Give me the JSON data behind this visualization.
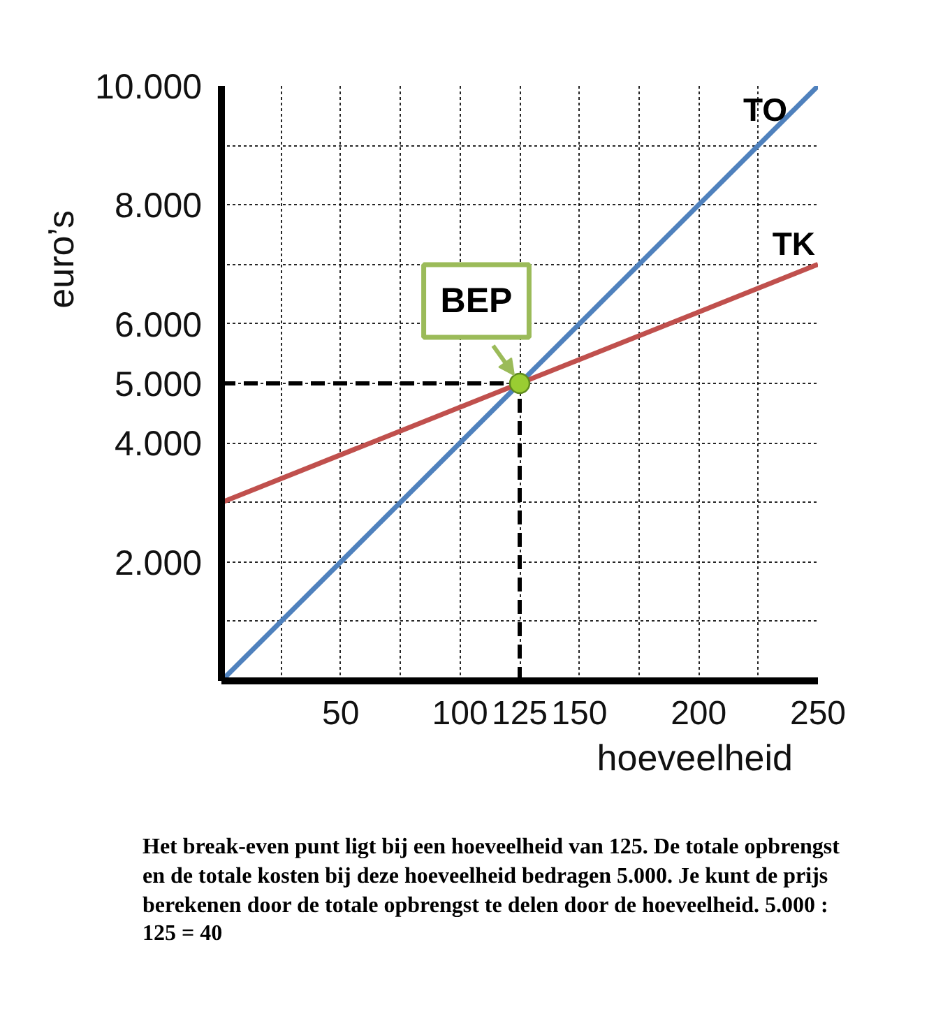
{
  "chart_data": {
    "type": "line",
    "xlabel": "hoeveelheid",
    "ylabel": "euro’s",
    "xlim": [
      0,
      250
    ],
    "ylim": [
      0,
      10000
    ],
    "xticks": [
      {
        "value": 25,
        "label": null
      },
      50,
      {
        "value": 75,
        "label": null
      },
      100,
      125,
      150,
      {
        "value": 175,
        "label": null
      },
      200,
      {
        "value": 225,
        "label": null
      },
      250
    ],
    "yticks": [
      {
        "value": 1000,
        "label": null
      },
      {
        "value": 2000,
        "label": "2.000"
      },
      {
        "value": 3000,
        "label": null
      },
      {
        "value": 4000,
        "label": "4.000"
      },
      {
        "value": 5000,
        "label": "5.000"
      },
      {
        "value": 6000,
        "label": "6.000"
      },
      {
        "value": 7000,
        "label": null
      },
      {
        "value": 8000,
        "label": "8.000"
      },
      {
        "value": 9000,
        "label": null
      },
      {
        "value": 10000,
        "label": "10.000"
      }
    ],
    "grid": true,
    "series": [
      {
        "color": "#000000",
        "line_style": "dashed",
        "x": [
          0,
          125
        ],
        "values": [
          5000,
          5000
        ]
      },
      {
        "color": "#000000",
        "line_style": "dashed",
        "x": [
          125,
          125
        ],
        "values": [
          0,
          5000
        ]
      },
      {
        "name": "TO",
        "color": "#4f81bd",
        "x": [
          0,
          250
        ],
        "values": [
          0,
          10000
        ]
      },
      {
        "name": "TK",
        "color": "#c0504d",
        "x": [
          0,
          250
        ],
        "values": [
          3000,
          7000
        ]
      },
      {
        "type": "scatter",
        "marker": "circle",
        "color": "#9acd32",
        "x": [
          125
        ],
        "values": [
          5000
        ]
      }
    ],
    "annotations": [
      {
        "text": "BEP",
        "x": 125,
        "y": 5000
      },
      "Het break-even punt ligt bij een hoeveelheid van 125. De totale opbrengst en de totale kosten bij deze hoeveelheid bedragen 5.000. Je kunt de prijs berekenen door de totale opbrengst te delen door de hoeveelheid. 5.000 : 125 = 40"
    ]
  }
}
